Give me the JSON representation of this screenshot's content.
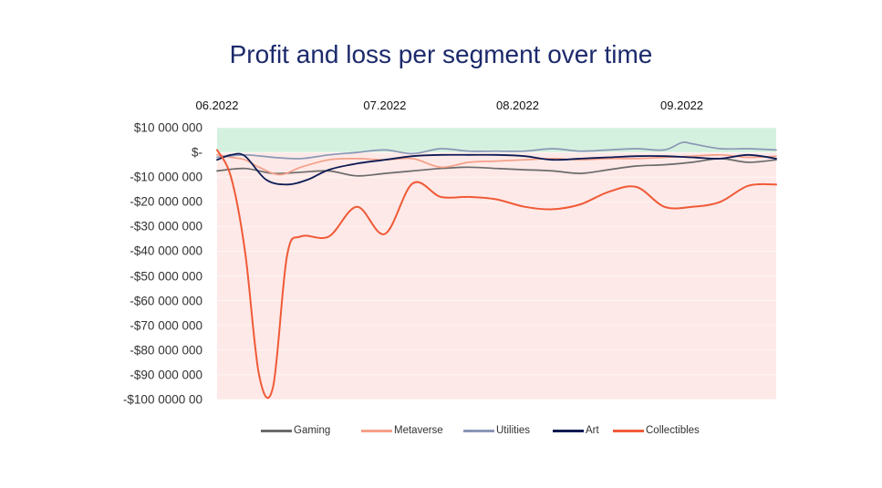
{
  "chart_data": {
    "type": "line",
    "title": "Profit and loss per segment over time",
    "x_tick_labels": [
      "06.2022",
      "07.2022",
      "08.2022",
      "09.2022"
    ],
    "y_tick_labels": [
      "$10 000 000",
      "$-",
      "-$10 000 000",
      "-$20 000 000",
      "-$30 000 000",
      "-$40 000 000",
      "-$50 000 000",
      "-$60 000 000",
      "-$70 000 000",
      "-$80 000 000",
      "-$90 000 000",
      "-$100 0000 00"
    ],
    "ylim": [
      -100000000,
      10000000
    ],
    "x_unit": "weeks since start of 06.2022",
    "xlim": [
      0,
      16
    ],
    "month_positions": [
      0,
      4.8,
      8.6,
      13.3
    ],
    "background": {
      "positive_color": "#d4f1df",
      "negative_color": "#fde9e7"
    },
    "series": [
      {
        "name": "Gaming",
        "color": "#6b6b6b",
        "x": [
          0,
          0.8,
          1.6,
          2.4,
          3.2,
          4.0,
          4.8,
          5.6,
          6.4,
          7.2,
          8.0,
          8.8,
          9.6,
          10.4,
          11.2,
          12.0,
          12.8,
          13.6,
          14.4,
          15.2,
          16.0
        ],
        "y": [
          -7.5,
          -6.5,
          -8.5,
          -8.0,
          -7.5,
          -9.5,
          -8.5,
          -7.5,
          -6.5,
          -6.0,
          -6.5,
          -7.0,
          -7.5,
          -8.5,
          -7.0,
          -5.5,
          -5.0,
          -4.0,
          -2.5,
          -4.0,
          -3.0
        ]
      },
      {
        "name": "Metaverse",
        "color": "#f4a088",
        "x": [
          0,
          0.4,
          0.8,
          1.2,
          1.8,
          2.4,
          3.2,
          4.0,
          4.8,
          5.6,
          6.4,
          7.2,
          8.0,
          8.8,
          9.6,
          10.4,
          11.2,
          12.0,
          12.8,
          13.6,
          14.4,
          15.2,
          16.0
        ],
        "y": [
          -1,
          -2,
          -3,
          -6,
          -9,
          -6,
          -3,
          -2.5,
          -3,
          -2.5,
          -6,
          -4,
          -3.5,
          -3,
          -2.5,
          -3,
          -2.5,
          -2.5,
          -2,
          -1.5,
          -1,
          -2,
          -1.5
        ]
      },
      {
        "name": "Utilities",
        "color": "#8a97b6",
        "x": [
          0,
          0.8,
          1.6,
          2.4,
          3.2,
          4.0,
          4.8,
          5.6,
          6.4,
          7.2,
          8.0,
          8.8,
          9.6,
          10.4,
          11.2,
          12.0,
          12.8,
          13.3,
          13.6,
          14.4,
          15.2,
          16.0
        ],
        "y": [
          -2,
          -1,
          -2,
          -2.5,
          -1,
          0,
          1,
          -0.5,
          1.5,
          0.5,
          0.5,
          0.5,
          1.5,
          0.5,
          1,
          1.5,
          1,
          4,
          3.5,
          1.5,
          1.5,
          1
        ]
      },
      {
        "name": "Art",
        "color": "#0c1b54",
        "x": [
          0,
          0.4,
          0.8,
          1.4,
          2.0,
          2.6,
          3.2,
          4.0,
          4.8,
          5.6,
          6.4,
          7.2,
          8.0,
          8.8,
          9.6,
          10.4,
          11.2,
          12.0,
          12.8,
          13.6,
          14.4,
          15.2,
          16.0
        ],
        "y": [
          -3,
          -1,
          -1.5,
          -11,
          -13,
          -11,
          -7,
          -4.5,
          -3,
          -1.5,
          -1,
          -1,
          -1,
          -1.5,
          -3,
          -2.5,
          -2,
          -1.5,
          -1.5,
          -2,
          -2.5,
          -1,
          -2.5
        ]
      },
      {
        "name": "Collectibles",
        "color": "#f05a37",
        "x": [
          0,
          0.4,
          0.8,
          1.2,
          1.6,
          2.0,
          2.4,
          3.2,
          4.0,
          4.8,
          5.6,
          6.4,
          7.2,
          8.0,
          8.8,
          9.6,
          10.4,
          11.2,
          12.0,
          12.8,
          13.6,
          14.4,
          15.2,
          16.0
        ],
        "y": [
          1,
          -10,
          -40,
          -90,
          -95,
          -42,
          -34,
          -34,
          -22,
          -33,
          -12.5,
          -18,
          -18,
          -19,
          -22,
          -23,
          -21,
          -16,
          -14,
          -22,
          -22,
          -20,
          -13.5,
          -13
        ]
      }
    ]
  }
}
